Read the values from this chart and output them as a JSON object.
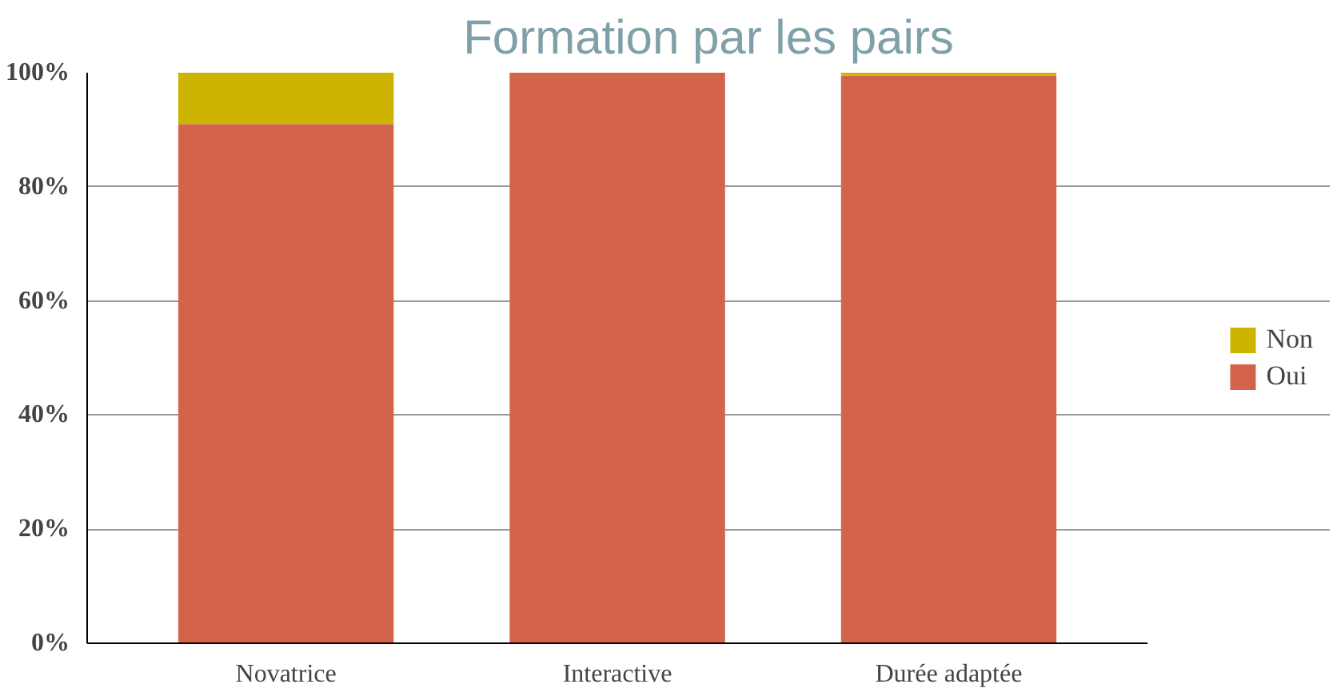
{
  "chart_data": {
    "type": "bar",
    "title": "Formation par les pairs",
    "stacked": true,
    "categories": [
      "Novatrice",
      "Interactive",
      "Durée adaptée"
    ],
    "series": [
      {
        "name": "Oui",
        "color": "#d4634b",
        "values": [
          91,
          100,
          99.5
        ]
      },
      {
        "name": "Non",
        "color": "#cdb400",
        "values": [
          9,
          0,
          0.5
        ]
      }
    ],
    "ylim": [
      0,
      100
    ],
    "yticks": [
      {
        "value": 0,
        "label": "0%"
      },
      {
        "value": 20,
        "label": "20%"
      },
      {
        "value": 40,
        "label": "40%"
      },
      {
        "value": 60,
        "label": "60%"
      },
      {
        "value": 80,
        "label": "80%"
      },
      {
        "value": 100,
        "label": "100%"
      }
    ],
    "grid": "y",
    "legend": "right"
  }
}
